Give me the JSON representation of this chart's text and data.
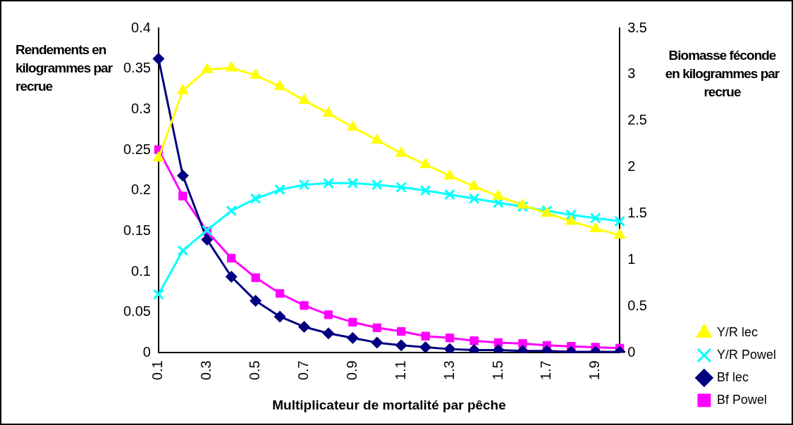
{
  "chart_data": {
    "type": "line",
    "categories": [
      "0.1",
      null,
      "0.3",
      null,
      "0.5",
      null,
      "0.7",
      null,
      "0.9",
      null,
      "1.1",
      null,
      "1.3",
      null,
      "1.5",
      null,
      "1.7",
      null,
      "1.9",
      null
    ],
    "xlabel": "Multiplicateur de mortalité par pêche",
    "ylabel": "Rendements en kilogrammes par recrue",
    "y2label": "Biomasse féconde en kilogrammes par recrue",
    "ylim": [
      0,
      0.4
    ],
    "yticks": [
      0,
      0.05,
      0.1,
      0.15,
      0.2,
      0.25,
      0.3,
      0.35,
      0.4
    ],
    "y2lim": [
      0,
      3.5
    ],
    "y2ticks": [
      0,
      0.5,
      1,
      1.5,
      2,
      2.5,
      3,
      3.5
    ],
    "grid": false,
    "legend": "bottom right",
    "series": [
      {
        "name": "Y/R lec",
        "color": "#ffff00",
        "marker": "triangle",
        "values": [
          0.24,
          0.323,
          0.349,
          0.351,
          0.342,
          0.328,
          0.311,
          0.295,
          0.278,
          0.262,
          0.246,
          0.232,
          0.218,
          0.205,
          0.193,
          0.182,
          0.172,
          0.162,
          0.153,
          0.145
        ]
      },
      {
        "name": "Y/R Powel",
        "color": "#00ffff",
        "marker": "cross",
        "values": [
          0.072,
          0.126,
          0.151,
          0.175,
          0.19,
          0.201,
          0.207,
          0.209,
          0.209,
          0.207,
          0.204,
          0.2,
          0.195,
          0.19,
          0.185,
          0.18,
          0.175,
          0.17,
          0.166,
          0.162
        ]
      },
      {
        "name": "Bf lec",
        "color": "#000080",
        "marker": "diamond",
        "axis": "y2",
        "values": [
          3.17,
          1.91,
          1.22,
          0.82,
          0.56,
          0.39,
          0.28,
          0.21,
          0.16,
          0.11,
          0.08,
          0.06,
          0.04,
          0.03,
          0.03,
          0.02,
          0.02,
          0.01,
          0.01,
          0.01
        ]
      },
      {
        "name": "Bf Powel",
        "color": "#ff00ff",
        "marker": "square",
        "axis": "y2",
        "values": [
          2.19,
          1.69,
          1.31,
          1.02,
          0.81,
          0.64,
          0.51,
          0.41,
          0.33,
          0.27,
          0.23,
          0.18,
          0.16,
          0.13,
          0.11,
          0.1,
          0.08,
          0.07,
          0.06,
          0.05
        ]
      }
    ]
  }
}
